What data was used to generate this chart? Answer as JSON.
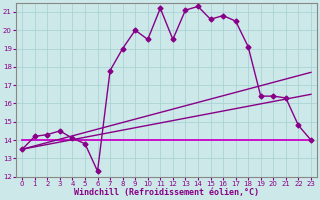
{
  "xlabel": "Windchill (Refroidissement éolien,°C)",
  "bg_color": "#cce8e8",
  "xlim": [
    -0.5,
    23.5
  ],
  "ylim": [
    12,
    21.5
  ],
  "yticks": [
    12,
    13,
    14,
    15,
    16,
    17,
    18,
    19,
    20,
    21
  ],
  "xticks": [
    0,
    1,
    2,
    3,
    4,
    5,
    6,
    7,
    8,
    9,
    10,
    11,
    12,
    13,
    14,
    15,
    16,
    17,
    18,
    19,
    20,
    21,
    22,
    23
  ],
  "grid_color": "#aad4d4",
  "series": [
    {
      "x": [
        0,
        1,
        2,
        3,
        4,
        5,
        6,
        7,
        8,
        9,
        10,
        11,
        12,
        13,
        14,
        15,
        16,
        17,
        18,
        19,
        20,
        21,
        22,
        23
      ],
      "y": [
        13.5,
        14.2,
        14.3,
        14.5,
        14.1,
        13.8,
        12.3,
        17.8,
        19.0,
        20.0,
        19.5,
        21.2,
        19.5,
        21.1,
        21.3,
        20.6,
        20.8,
        20.5,
        19.1,
        16.4,
        16.4,
        16.3,
        14.8,
        14.0
      ],
      "marker": "D",
      "markersize": 2.5,
      "linewidth": 1.0,
      "color": "#880088"
    },
    {
      "x": [
        0,
        23
      ],
      "y": [
        14.0,
        14.0
      ],
      "marker": null,
      "linewidth": 1.3,
      "color": "#cc00cc"
    },
    {
      "x": [
        0,
        23
      ],
      "y": [
        13.5,
        17.7
      ],
      "marker": null,
      "linewidth": 1.0,
      "color": "#880088"
    },
    {
      "x": [
        0,
        23
      ],
      "y": [
        13.5,
        16.5
      ],
      "marker": null,
      "linewidth": 1.0,
      "color": "#880088"
    }
  ],
  "tick_fontsize": 5,
  "xlabel_fontsize": 6,
  "tick_color": "#880088",
  "spine_color": "#888888"
}
